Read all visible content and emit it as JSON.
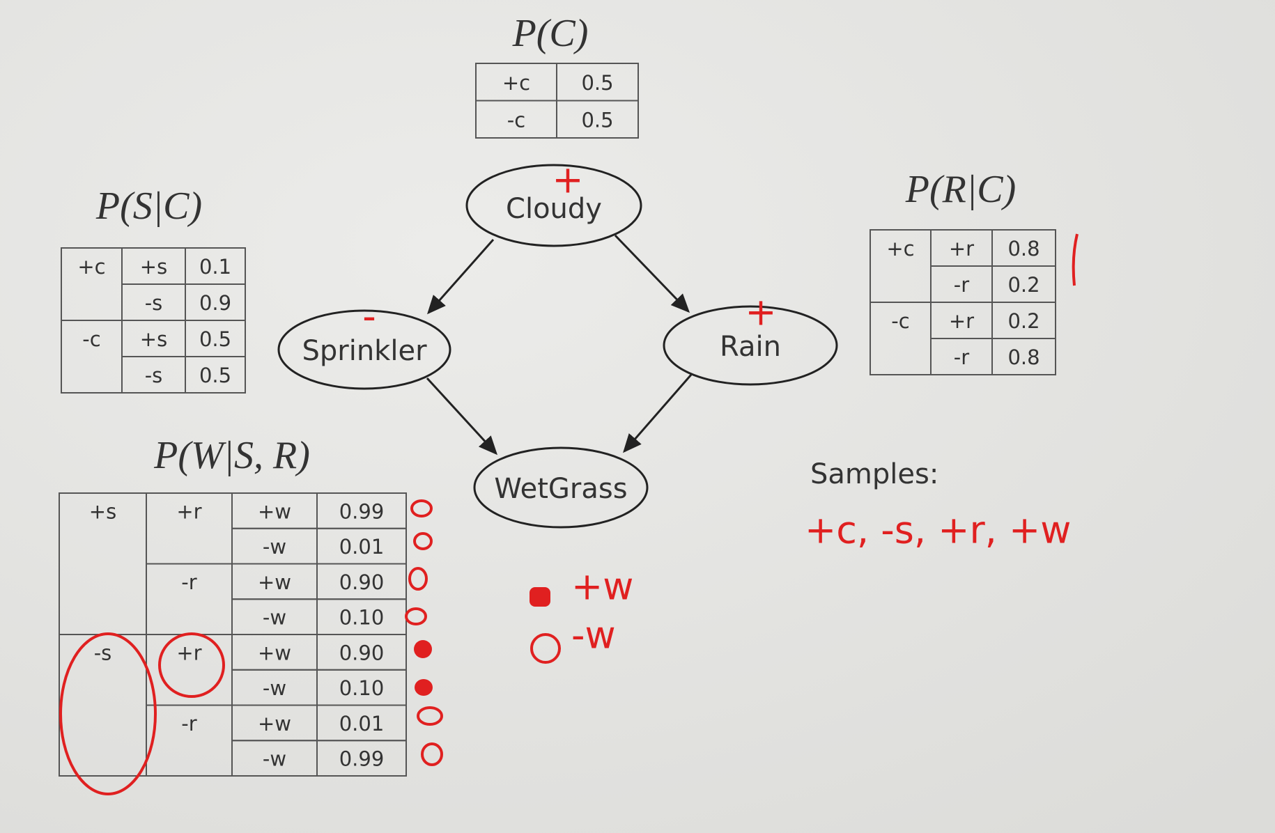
{
  "tables": [
    {
      "title": "P(C)",
      "rows": [
        [
          "+c",
          "0.5"
        ],
        [
          "-c",
          "0.5"
        ]
      ]
    },
    {
      "title": "P(S|C)",
      "groups": [
        {
          "label": "+c",
          "rows": [
            [
              "+s",
              "0.1"
            ],
            [
              "-s",
              "0.9"
            ]
          ]
        },
        {
          "label": "-c",
          "rows": [
            [
              "+s",
              "0.5"
            ],
            [
              "-s",
              "0.5"
            ]
          ]
        }
      ]
    },
    {
      "title": "P(R|C)",
      "groups": [
        {
          "label": "+c",
          "rows": [
            [
              "+r",
              "0.8"
            ],
            [
              "-r",
              "0.2"
            ]
          ]
        },
        {
          "label": "-c",
          "rows": [
            [
              "+r",
              "0.2"
            ],
            [
              "-r",
              "0.8"
            ]
          ]
        }
      ]
    },
    {
      "title": "P(W|S, R)",
      "groups": [
        {
          "label": "+s",
          "groups": [
            {
              "label": "+r",
              "rows": [
                [
                  "+w",
                  "0.99"
                ],
                [
                  "-w",
                  "0.01"
                ]
              ]
            },
            {
              "label": "-r",
              "rows": [
                [
                  "+w",
                  "0.90"
                ],
                [
                  "-w",
                  "0.10"
                ]
              ]
            }
          ]
        },
        {
          "label": "-s",
          "groups": [
            {
              "label": "+r",
              "rows": [
                [
                  "+w",
                  "0.90"
                ],
                [
                  "-w",
                  "0.10"
                ]
              ]
            },
            {
              "label": "-r",
              "rows": [
                [
                  "+w",
                  "0.01"
                ],
                [
                  "-w",
                  "0.99"
                ]
              ]
            }
          ]
        }
      ]
    }
  ],
  "nodes": [
    {
      "label": "Cloudy"
    },
    {
      "label": "Sprinkler"
    },
    {
      "label": "Rain"
    },
    {
      "label": "WetGrass"
    }
  ],
  "samples": {
    "label": "Samples:",
    "value": "+c, -s, +r, +w"
  },
  "annotations": {
    "cloudy_mark": "+",
    "sprinkler_mark": "-",
    "rain_mark": "+",
    "legend": [
      "+w",
      "-w"
    ]
  }
}
